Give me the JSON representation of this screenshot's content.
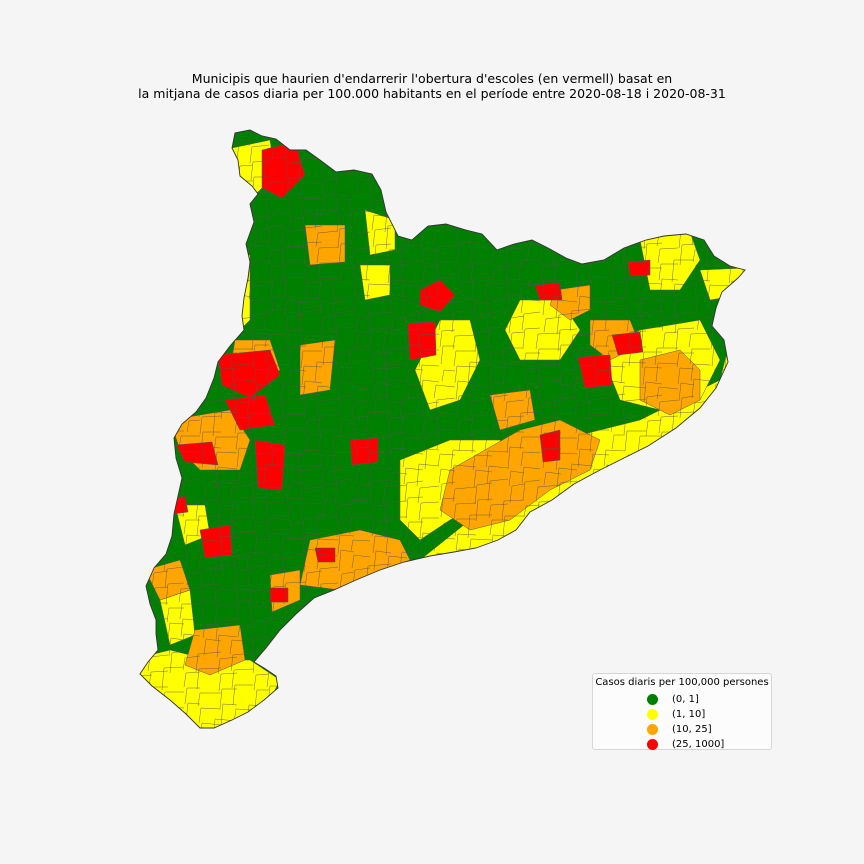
{
  "title": {
    "line1": "Municipis que haurien d'endarrerir l'obertura d'escoles (en vermell) basat en",
    "line2": "la mitjana de casos diaria per 100.000 habitants en el període entre 2020-08-18 i 2020-08-31"
  },
  "legend": {
    "title": "Casos diaris per 100,000 persones",
    "items": [
      {
        "label": "(0, 1]",
        "color": "#008000"
      },
      {
        "label": "(1, 10]",
        "color": "#ffff00"
      },
      {
        "label": "(10, 25]",
        "color": "#ffa500"
      },
      {
        "label": "(25, 1000]",
        "color": "#ff0000"
      }
    ]
  },
  "colors": {
    "background": "#f5f5f5",
    "border": "#555555"
  }
}
